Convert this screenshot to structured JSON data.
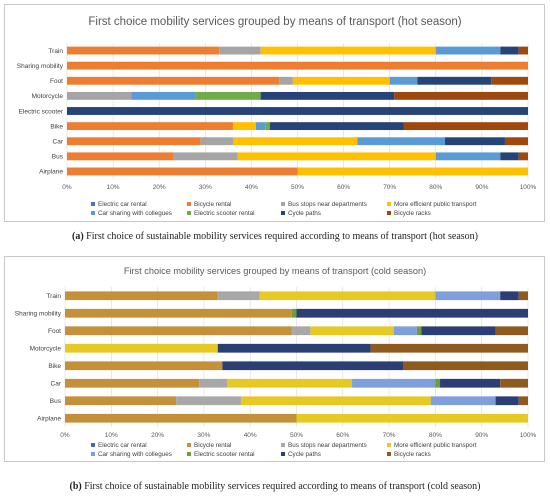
{
  "colors": {
    "Electric car rental": "#4472c4",
    "Bicycle rental": "#ed7d31",
    "Bus stops near departments": "#a5a5a5",
    "More efficient public transport": "#ffc000",
    "Car sharing with collegues": "#5b9bd5",
    "Electric scooter rental": "#70ad47",
    "Cycle paths": "#264478",
    "Bicycle racks": "#9e480e"
  },
  "colors_cold": {
    "Electric car rental": "#4a66ac",
    "Bicycle rental": "#c5903a",
    "Bus stops near departments": "#a8a8a8",
    "More efficient public transport": "#e6c922",
    "Car sharing with collegues": "#7f9fdc",
    "Electric scooter rental": "#6f9a3e",
    "Cycle paths": "#2c3f74",
    "Bicycle racks": "#8e5a1e"
  },
  "captions": {
    "a_label": "(a)",
    "a_text": " First choice of sustainable mobility services required according to means of transport (hot season)",
    "b_label": "(b)",
    "b_text": " First choice of sustainable mobility services required according to means of transport (cold season)"
  },
  "chart_data": [
    {
      "type": "bar",
      "orientation": "horizontal",
      "stacked": "percent",
      "title": "First choice mobility services grouped by means of transport (hot season)",
      "xlim": [
        0,
        100
      ],
      "xticks": [
        "0%",
        "10%",
        "20%",
        "30%",
        "40%",
        "50%",
        "60%",
        "70%",
        "80%",
        "90%",
        "100%"
      ],
      "legend_position": "bottom",
      "grid": true,
      "categories": [
        "Train",
        "Sharing mobility",
        "Foot",
        "Motorcycle",
        "Electric scooter",
        "Bike",
        "Car",
        "Bus",
        "Airplane"
      ],
      "series": [
        {
          "name": "Electric car rental",
          "values": [
            0,
            0,
            0,
            0,
            0,
            0,
            0,
            0,
            0
          ]
        },
        {
          "name": "Bicycle rental",
          "values": [
            33,
            100,
            46,
            0,
            0,
            36,
            29,
            23,
            50
          ]
        },
        {
          "name": "Bus stops near departments",
          "values": [
            9,
            0,
            3,
            14,
            0,
            0,
            7,
            14,
            0
          ]
        },
        {
          "name": "More efficient public transport",
          "values": [
            38,
            0,
            21,
            0,
            0,
            5,
            27,
            43,
            50
          ]
        },
        {
          "name": "Car sharing with collegues",
          "values": [
            14,
            0,
            6,
            14,
            0,
            2,
            19,
            14,
            0
          ]
        },
        {
          "name": "Electric scooter rental",
          "values": [
            0,
            0,
            0,
            14,
            0,
            1,
            0,
            0,
            0
          ]
        },
        {
          "name": "Cycle paths",
          "values": [
            4,
            0,
            16,
            29,
            100,
            29,
            13,
            4,
            0
          ]
        },
        {
          "name": "Bicycle racks",
          "values": [
            2,
            0,
            8,
            29,
            0,
            27,
            5,
            2,
            0
          ]
        }
      ]
    },
    {
      "type": "bar",
      "orientation": "horizontal",
      "stacked": "percent",
      "title": "First choice mobility services grouped by means of transport (cold season)",
      "xlim": [
        0,
        100
      ],
      "xticks": [
        "0%",
        "10%",
        "20%",
        "30%",
        "40%",
        "50%",
        "60%",
        "70%",
        "80%",
        "90%",
        "100%"
      ],
      "legend_position": "bottom",
      "grid": true,
      "categories": [
        "Train",
        "Sharing mobility",
        "Foot",
        "Motorcycle",
        "Bike",
        "Car",
        "Bus",
        "Airplane"
      ],
      "series": [
        {
          "name": "Electric car rental",
          "values": [
            0,
            0,
            0,
            0,
            0,
            0,
            0,
            0
          ]
        },
        {
          "name": "Bicycle rental",
          "values": [
            33,
            49,
            49,
            0,
            34,
            29,
            24,
            50
          ]
        },
        {
          "name": "Bus stops near departments",
          "values": [
            9,
            0,
            4,
            0,
            0,
            6,
            14,
            0
          ]
        },
        {
          "name": "More efficient public transport",
          "values": [
            38,
            0,
            18,
            33,
            0,
            27,
            41,
            50
          ]
        },
        {
          "name": "Car sharing with collegues",
          "values": [
            14,
            0,
            5,
            0,
            0,
            18,
            14,
            0
          ]
        },
        {
          "name": "Electric scooter rental",
          "values": [
            0,
            1,
            1,
            0,
            0,
            1,
            0,
            0
          ]
        },
        {
          "name": "Cycle paths",
          "values": [
            4,
            50,
            16,
            33,
            39,
            13,
            5,
            0
          ]
        },
        {
          "name": "Bicycle racks",
          "values": [
            2,
            0,
            7,
            34,
            27,
            6,
            2,
            0
          ]
        }
      ]
    }
  ]
}
